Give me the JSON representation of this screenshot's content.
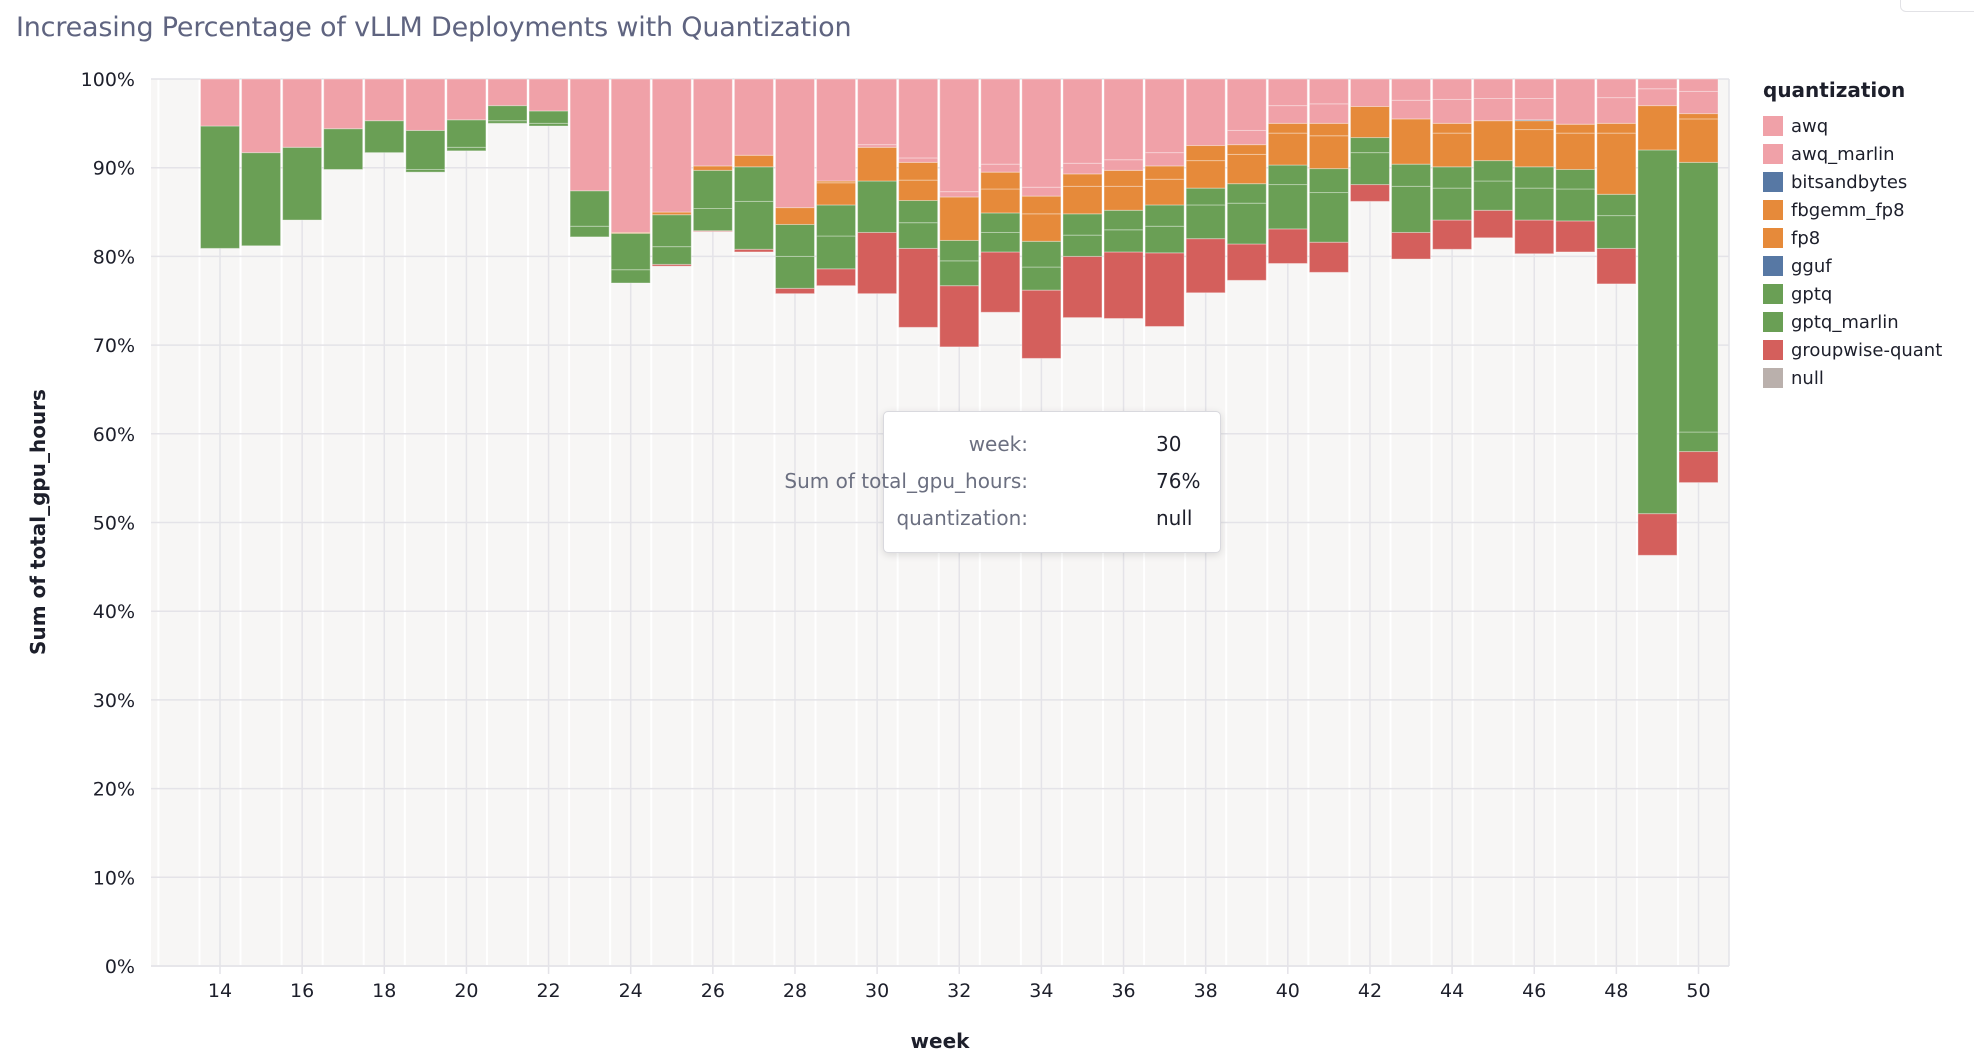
{
  "chart_data": {
    "type": "bar",
    "stacked": true,
    "normalized": true,
    "title": "Increasing Percentage of vLLM Deployments with Quantization",
    "xlabel": "week",
    "ylabel": "Sum of total_gpu_hours",
    "ylim": [
      0,
      100
    ],
    "yticks": [
      "0%",
      "10%",
      "20%",
      "30%",
      "40%",
      "50%",
      "60%",
      "70%",
      "80%",
      "90%",
      "100%"
    ],
    "xticks": [
      "14",
      "16",
      "18",
      "20",
      "22",
      "24",
      "26",
      "28",
      "30",
      "32",
      "34",
      "36",
      "38",
      "40",
      "42",
      "44",
      "46",
      "48",
      "50"
    ],
    "grid": true,
    "legend_position": "right",
    "legend_title": "quantization",
    "categories": [
      14,
      15,
      16,
      17,
      18,
      19,
      20,
      21,
      22,
      23,
      24,
      25,
      26,
      27,
      28,
      29,
      30,
      31,
      32,
      33,
      34,
      35,
      36,
      37,
      38,
      39,
      40,
      41,
      42,
      43,
      44,
      45,
      46,
      47,
      48,
      49,
      50
    ],
    "series": [
      {
        "name": "awq",
        "color": "#f0a1a8",
        "values": [
          5.3,
          8.3,
          7.7,
          5.6,
          4.7,
          5.8,
          4.6,
          3.0,
          3.6,
          12.6,
          17.3,
          15.0,
          9.8,
          8.6,
          14.5,
          11.5,
          7.4,
          8.9,
          12.7,
          9.6,
          12.2,
          9.5,
          9.1,
          8.3,
          7.5,
          5.8,
          3.0,
          2.8,
          3.1,
          2.4,
          2.3,
          2.2,
          2.2,
          5.1,
          2.1,
          1.1,
          1.4
        ]
      },
      {
        "name": "awq_marlin",
        "color": "#f0a1a8",
        "values": [
          0,
          0,
          0,
          0,
          0,
          0,
          0,
          0,
          0,
          0,
          0,
          0,
          0,
          0,
          0,
          0,
          0.3,
          0.5,
          0.6,
          0.9,
          1.0,
          1.2,
          1.2,
          1.5,
          0,
          1.6,
          2.0,
          2.2,
          0,
          2.1,
          2.7,
          2.5,
          2.4,
          0,
          2.9,
          1.9,
          2.5
        ]
      },
      {
        "name": "bitsandbytes",
        "color": "#5778a4",
        "values": [
          0,
          0,
          0,
          0,
          0,
          0,
          0,
          0,
          0,
          0,
          0,
          0,
          0,
          0,
          0,
          0,
          0,
          0,
          0,
          0,
          0,
          0,
          0,
          0,
          0,
          0,
          0,
          0,
          0,
          0,
          0,
          0,
          0.1,
          0,
          0,
          0,
          0
        ]
      },
      {
        "name": "fbgemm_fp8",
        "color": "#e68a3a",
        "values": [
          0,
          0,
          0,
          0,
          0,
          0,
          0,
          0,
          0,
          0,
          0,
          0,
          0,
          0,
          0,
          0.2,
          0,
          2.0,
          0,
          1.9,
          2.0,
          1.4,
          1.8,
          1.5,
          1.7,
          1.1,
          1.1,
          1.4,
          0,
          0,
          1.1,
          0,
          1.0,
          1.0,
          1.1,
          0,
          0.6
        ]
      },
      {
        "name": "fp8",
        "color": "#e68a3a",
        "values": [
          0,
          0,
          0,
          0,
          0,
          0,
          0,
          0,
          0,
          0,
          0.1,
          0.3,
          0.5,
          1.3,
          1.9,
          2.5,
          3.8,
          2.3,
          4.9,
          2.7,
          3.1,
          3.1,
          2.7,
          2.9,
          3.1,
          3.3,
          3.6,
          3.7,
          3.5,
          5.1,
          3.8,
          4.5,
          4.2,
          4.1,
          6.9,
          5.0,
          4.9
        ]
      },
      {
        "name": "gguf",
        "color": "#5778a4",
        "values": [
          0,
          0,
          0,
          0,
          0,
          0,
          0,
          0,
          0,
          0,
          0,
          0,
          0,
          0,
          0,
          0,
          0,
          0,
          0,
          0,
          0,
          0,
          0,
          0,
          0,
          0,
          0,
          0,
          0,
          0,
          0,
          0,
          0,
          0,
          0,
          0,
          0
        ]
      },
      {
        "name": "gptq",
        "color": "#6a9f55",
        "values": [
          13.8,
          10.5,
          8.2,
          4.6,
          3.6,
          4.4,
          3.1,
          1.7,
          1.4,
          4.0,
          4.1,
          3.6,
          4.3,
          3.9,
          3.6,
          3.5,
          5.8,
          2.5,
          2.3,
          2.2,
          2.9,
          2.4,
          2.2,
          2.4,
          1.9,
          2.2,
          2.2,
          2.7,
          1.7,
          2.5,
          2.4,
          2.3,
          2.4,
          2.2,
          2.4,
          41.0,
          30.4
        ]
      },
      {
        "name": "gptq_marlin",
        "color": "#6a9f55",
        "values": [
          0,
          0,
          0,
          0,
          0,
          0.3,
          0.4,
          0.3,
          0.3,
          1.2,
          1.5,
          2.0,
          2.5,
          5.4,
          3.6,
          3.7,
          0,
          2.9,
          2.8,
          2.2,
          2.6,
          2.4,
          2.5,
          3.0,
          3.8,
          4.6,
          5.0,
          5.6,
          3.6,
          5.2,
          3.6,
          3.3,
          3.6,
          3.6,
          3.7,
          0,
          2.2
        ]
      },
      {
        "name": "groupwise-quant",
        "color": "#d45f5c",
        "values": [
          0,
          0,
          0,
          0,
          0,
          0,
          0,
          0,
          0,
          0,
          0,
          0.2,
          0.1,
          0.3,
          0.6,
          1.9,
          6.9,
          8.9,
          6.9,
          6.8,
          7.7,
          6.9,
          7.5,
          8.3,
          6.1,
          4.1,
          3.9,
          3.4,
          1.9,
          3.0,
          3.3,
          3.1,
          3.8,
          3.5,
          4.0,
          4.7,
          3.5
        ]
      },
      {
        "name": "null",
        "color": "#bab0ac",
        "values": [
          80.9,
          81.2,
          84.1,
          89.8,
          91.7,
          89.5,
          91.9,
          95.0,
          94.7,
          82.2,
          77.0,
          78.9,
          82.8,
          80.5,
          75.8,
          76.7,
          75.8,
          72.0,
          69.8,
          73.7,
          68.5,
          73.1,
          73.0,
          72.1,
          75.9,
          77.3,
          79.2,
          78.2,
          86.2,
          79.7,
          80.8,
          82.1,
          80.3,
          80.5,
          76.9,
          46.3,
          54.5
        ]
      }
    ]
  },
  "tooltip": {
    "rows": [
      {
        "key": "week:",
        "value": "30"
      },
      {
        "key": "Sum of total_gpu_hours:",
        "value": "76%"
      },
      {
        "key": "quantization:",
        "value": "null"
      }
    ]
  }
}
